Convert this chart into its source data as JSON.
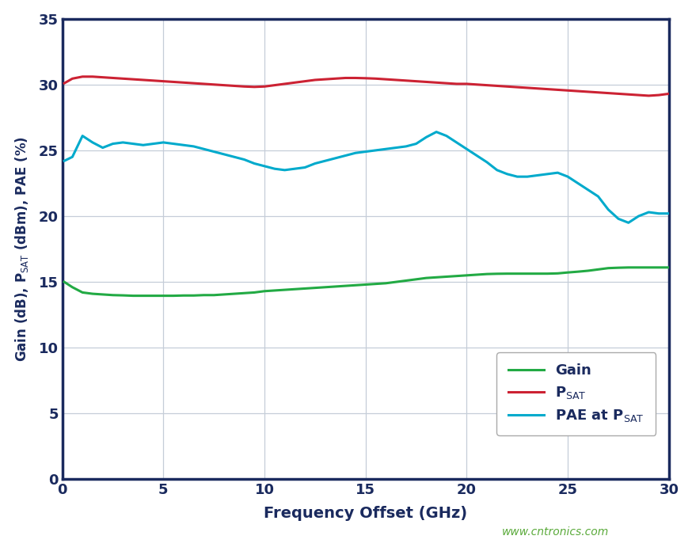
{
  "xlabel": "Frequency Offset (GHz)",
  "ylabel": "Gain (dB), P$_{\\mathrm{SAT}}$ (dBm), PAE (%)",
  "xlim": [
    0,
    30
  ],
  "ylim": [
    0,
    35
  ],
  "xticks": [
    0,
    5,
    10,
    15,
    20,
    25,
    30
  ],
  "yticks": [
    0,
    5,
    10,
    15,
    20,
    25,
    30,
    35
  ],
  "background_color": "#ffffff",
  "grid_color": "#c5cdd8",
  "label_color": "#1a2a5e",
  "tick_color": "#1a2a5e",
  "spine_color": "#1a2a5e",
  "watermark": "www.cntronics.com",
  "watermark_color": "#5aaa3a",
  "gain_color": "#22aa44",
  "psat_color": "#cc2233",
  "pae_color": "#00aacc",
  "linewidth": 2.2,
  "gain_data": {
    "x": [
      0.1,
      0.5,
      1.0,
      1.5,
      2.0,
      2.5,
      3.0,
      3.5,
      4.0,
      4.5,
      5.0,
      5.5,
      6.0,
      6.5,
      7.0,
      7.5,
      8.0,
      8.5,
      9.0,
      9.5,
      10.0,
      10.5,
      11.0,
      11.5,
      12.0,
      12.5,
      13.0,
      13.5,
      14.0,
      14.5,
      15.0,
      15.5,
      16.0,
      16.5,
      17.0,
      17.5,
      18.0,
      18.5,
      19.0,
      19.5,
      20.0,
      20.5,
      21.0,
      21.5,
      22.0,
      22.5,
      23.0,
      23.5,
      24.0,
      24.5,
      25.0,
      25.5,
      26.0,
      26.5,
      27.0,
      27.5,
      28.0,
      28.5,
      29.0,
      29.5,
      30.0
    ],
    "y": [
      15.0,
      14.6,
      14.2,
      14.1,
      14.05,
      14.0,
      13.98,
      13.95,
      13.95,
      13.95,
      13.95,
      13.95,
      13.97,
      13.97,
      14.0,
      14.0,
      14.05,
      14.1,
      14.15,
      14.2,
      14.3,
      14.35,
      14.4,
      14.45,
      14.5,
      14.55,
      14.6,
      14.65,
      14.7,
      14.75,
      14.8,
      14.85,
      14.9,
      15.0,
      15.1,
      15.2,
      15.3,
      15.35,
      15.4,
      15.45,
      15.5,
      15.55,
      15.6,
      15.62,
      15.63,
      15.63,
      15.63,
      15.63,
      15.63,
      15.65,
      15.72,
      15.78,
      15.85,
      15.95,
      16.05,
      16.08,
      16.1,
      16.1,
      16.1,
      16.1,
      16.1
    ]
  },
  "psat_data": {
    "x": [
      0.1,
      0.5,
      1.0,
      1.5,
      2.0,
      2.5,
      3.0,
      3.5,
      4.0,
      4.5,
      5.0,
      5.5,
      6.0,
      6.5,
      7.0,
      7.5,
      8.0,
      8.5,
      9.0,
      9.5,
      10.0,
      10.5,
      11.0,
      11.5,
      12.0,
      12.5,
      13.0,
      13.5,
      14.0,
      14.5,
      15.0,
      15.5,
      16.0,
      16.5,
      17.0,
      17.5,
      18.0,
      18.5,
      19.0,
      19.5,
      20.0,
      20.5,
      21.0,
      21.5,
      22.0,
      22.5,
      23.0,
      23.5,
      24.0,
      24.5,
      25.0,
      25.5,
      26.0,
      26.5,
      27.0,
      27.5,
      28.0,
      28.5,
      29.0,
      29.5,
      30.0
    ],
    "y": [
      30.1,
      30.45,
      30.6,
      30.6,
      30.55,
      30.5,
      30.45,
      30.4,
      30.35,
      30.3,
      30.25,
      30.2,
      30.15,
      30.1,
      30.05,
      30.0,
      29.95,
      29.9,
      29.85,
      29.82,
      29.85,
      29.95,
      30.05,
      30.15,
      30.25,
      30.35,
      30.4,
      30.45,
      30.5,
      30.5,
      30.48,
      30.45,
      30.4,
      30.35,
      30.3,
      30.25,
      30.2,
      30.15,
      30.1,
      30.05,
      30.05,
      30.0,
      29.95,
      29.9,
      29.85,
      29.8,
      29.75,
      29.7,
      29.65,
      29.6,
      29.55,
      29.5,
      29.45,
      29.4,
      29.35,
      29.3,
      29.25,
      29.2,
      29.15,
      29.2,
      29.3
    ]
  },
  "pae_data": {
    "x": [
      0.1,
      0.5,
      1.0,
      1.5,
      2.0,
      2.5,
      3.0,
      3.5,
      4.0,
      4.5,
      5.0,
      5.5,
      6.0,
      6.5,
      7.0,
      7.5,
      8.0,
      8.5,
      9.0,
      9.5,
      10.0,
      10.5,
      11.0,
      11.5,
      12.0,
      12.5,
      13.0,
      13.5,
      14.0,
      14.5,
      15.0,
      15.5,
      16.0,
      16.5,
      17.0,
      17.5,
      18.0,
      18.5,
      19.0,
      19.5,
      20.0,
      20.5,
      21.0,
      21.5,
      22.0,
      22.5,
      23.0,
      23.5,
      24.0,
      24.5,
      25.0,
      25.5,
      26.0,
      26.5,
      27.0,
      27.5,
      28.0,
      28.5,
      29.0,
      29.5,
      30.0
    ],
    "y": [
      24.2,
      24.5,
      26.1,
      25.6,
      25.2,
      25.5,
      25.6,
      25.5,
      25.4,
      25.5,
      25.6,
      25.5,
      25.4,
      25.3,
      25.1,
      24.9,
      24.7,
      24.5,
      24.3,
      24.0,
      23.8,
      23.6,
      23.5,
      23.6,
      23.7,
      24.0,
      24.2,
      24.4,
      24.6,
      24.8,
      24.9,
      25.0,
      25.1,
      25.2,
      25.3,
      25.5,
      26.0,
      26.4,
      26.1,
      25.6,
      25.1,
      24.6,
      24.1,
      23.5,
      23.2,
      23.0,
      23.0,
      23.1,
      23.2,
      23.3,
      23.0,
      22.5,
      22.0,
      21.5,
      20.5,
      19.8,
      19.5,
      20.0,
      20.3,
      20.2,
      20.2
    ]
  }
}
